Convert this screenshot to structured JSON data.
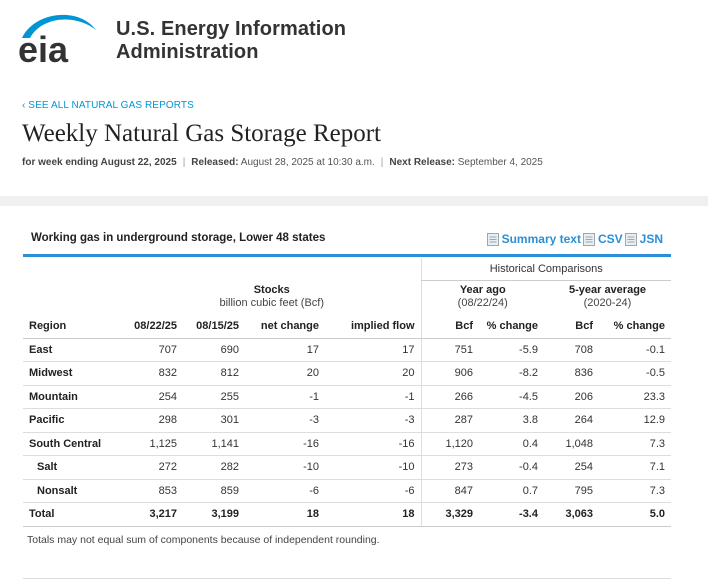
{
  "colors": {
    "accent": "#2b8fd6",
    "logo_blue": "#0096d6",
    "text": "#222222"
  },
  "header": {
    "logo_text": "eia",
    "org_line1": "U.S. Energy Information",
    "org_line2": "Administration"
  },
  "nav": {
    "see_all": "‹ SEE ALL NATURAL GAS REPORTS"
  },
  "page": {
    "title": "Weekly Natural Gas Storage Report",
    "meta": {
      "week_label": "for week ending August 22, 2025",
      "released_label": "Released:",
      "released_value": "August 28, 2025 at 10:30 a.m.",
      "next_label": "Next Release:",
      "next_value": "September 4, 2025",
      "separator": "|"
    }
  },
  "card": {
    "title": "Working gas in underground storage, Lower 48 states",
    "links": {
      "summary": "Summary text",
      "csv": "CSV",
      "json": "JSN"
    }
  },
  "table": {
    "historical_label": "Historical Comparisons",
    "groups": {
      "stocks_title": "Stocks",
      "stocks_sub": "billion cubic feet (Bcf)",
      "year_ago_title": "Year ago",
      "year_ago_sub": "(08/22/24)",
      "five_year_title": "5-year average",
      "five_year_sub": "(2020-24)"
    },
    "columns": [
      "Region",
      "08/22/25",
      "08/15/25",
      "net change",
      "implied flow",
      "Bcf",
      "% change",
      "Bcf",
      "% change"
    ],
    "rows": [
      [
        "East",
        "707",
        "690",
        "17",
        "17",
        "751",
        "-5.9",
        "708",
        "-0.1"
      ],
      [
        "Midwest",
        "832",
        "812",
        "20",
        "20",
        "906",
        "-8.2",
        "836",
        "-0.5"
      ],
      [
        "Mountain",
        "254",
        "255",
        "-1",
        "-1",
        "266",
        "-4.5",
        "206",
        "23.3"
      ],
      [
        "Pacific",
        "298",
        "301",
        "-3",
        "-3",
        "287",
        "3.8",
        "264",
        "12.9"
      ],
      [
        "South Central",
        "1,125",
        "1,141",
        "-16",
        "-16",
        "1,120",
        "0.4",
        "1,048",
        "7.3"
      ],
      [
        "Salt",
        "272",
        "282",
        "-10",
        "-10",
        "273",
        "-0.4",
        "254",
        "7.1"
      ],
      [
        "Nonsalt",
        "853",
        "859",
        "-6",
        "-6",
        "847",
        "0.7",
        "795",
        "7.3"
      ],
      [
        "Total",
        "3,217",
        "3,199",
        "18",
        "18",
        "3,329",
        "-3.4",
        "3,063",
        "5.0"
      ]
    ]
  },
  "footnote": "Totals may not equal sum of components because of independent rounding."
}
